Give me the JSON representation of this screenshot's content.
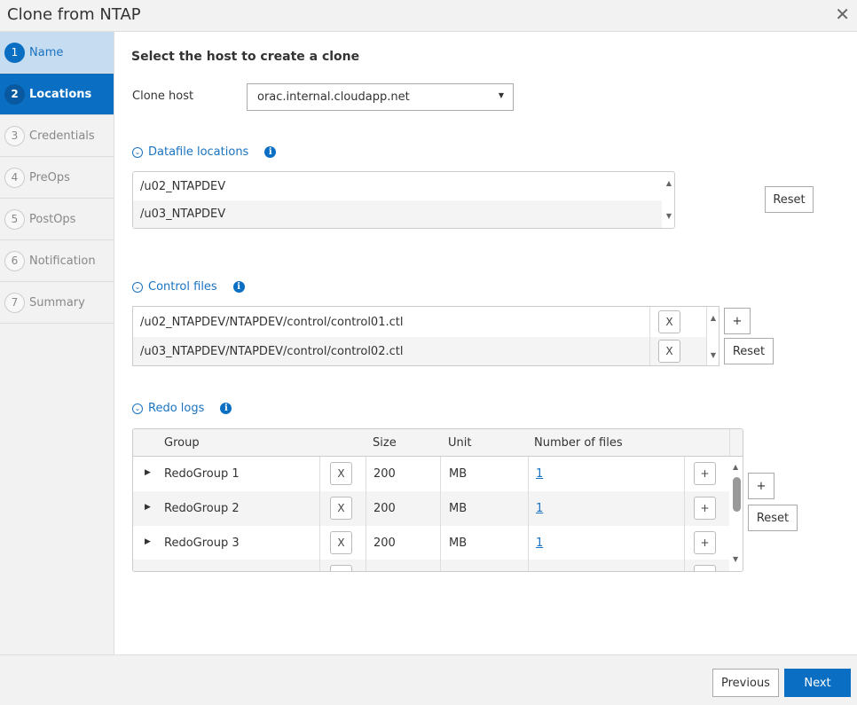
{
  "dialog": {
    "title": "Clone from NTAP",
    "close_icon": "close-icon"
  },
  "steps": [
    {
      "num": "1",
      "label": "Name"
    },
    {
      "num": "2",
      "label": "Locations"
    },
    {
      "num": "3",
      "label": "Credentials"
    },
    {
      "num": "4",
      "label": "PreOps"
    },
    {
      "num": "5",
      "label": "PostOps"
    },
    {
      "num": "6",
      "label": "Notification"
    },
    {
      "num": "7",
      "label": "Summary"
    }
  ],
  "main": {
    "heading": "Select the host to create a clone",
    "clone_host_label": "Clone host",
    "clone_host_value": "orac.internal.cloudapp.net",
    "datafile": {
      "title": "Datafile locations",
      "items": [
        "/u02_NTAPDEV",
        "/u03_NTAPDEV"
      ],
      "reset": "Reset"
    },
    "control": {
      "title": "Control files",
      "items": [
        "/u02_NTAPDEV/NTAPDEV/control/control01.ctl",
        "/u03_NTAPDEV/NTAPDEV/control/control02.ctl"
      ],
      "add": "+",
      "reset": "Reset",
      "remove": "X"
    },
    "redo": {
      "title": "Redo logs",
      "headers": [
        "Group",
        "Size",
        "Unit",
        "Number of files"
      ],
      "rows": [
        {
          "group": "RedoGroup 1",
          "size": "200",
          "unit": "MB",
          "files": "1"
        },
        {
          "group": "RedoGroup 2",
          "size": "200",
          "unit": "MB",
          "files": "1"
        },
        {
          "group": "RedoGroup 3",
          "size": "200",
          "unit": "MB",
          "files": "1"
        }
      ],
      "add": "+",
      "reset": "Reset",
      "remove": "X",
      "row_add": "+"
    }
  },
  "footer": {
    "previous": "Previous",
    "next": "Next"
  },
  "colors": {
    "accent": "#0a6fc2",
    "done_step": "#c6dcf0"
  }
}
